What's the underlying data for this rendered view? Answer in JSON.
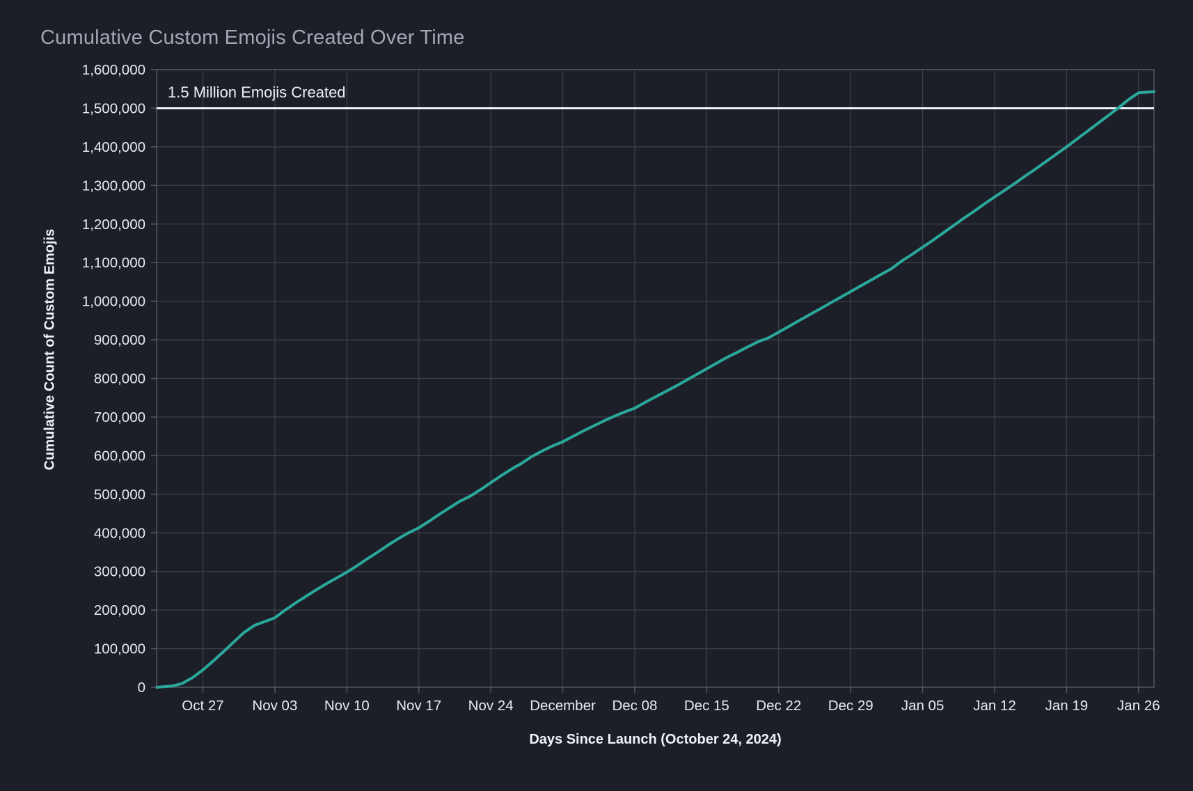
{
  "chart_data": {
    "type": "line",
    "title": "Cumulative Custom Emojis Created Over Time",
    "xlabel": "Days Since Launch (October 24, 2024)",
    "ylabel": "Cumulative Count of Custom Emojis",
    "xlim": [
      -1.5,
      95.5
    ],
    "ylim": [
      0,
      1600000
    ],
    "grid": true,
    "legend": false,
    "colors": {
      "background": "#1d1f28",
      "line": "#2aa99b",
      "grid": "#3c3f4a",
      "spine": "#50545f",
      "tick_label": "#e8eaef",
      "title": "#a3a7b4",
      "axis_label": "#f0f2f6",
      "reference_line": "#eef0f4"
    },
    "reference_line": {
      "value": 1500000,
      "label": "1.5 Million Emojis Created"
    },
    "yticks": [
      {
        "value": 0,
        "label": "0"
      },
      {
        "value": 100000,
        "label": "100,000"
      },
      {
        "value": 200000,
        "label": "200,000"
      },
      {
        "value": 300000,
        "label": "300,000"
      },
      {
        "value": 400000,
        "label": "400,000"
      },
      {
        "value": 500000,
        "label": "500,000"
      },
      {
        "value": 600000,
        "label": "600,000"
      },
      {
        "value": 700000,
        "label": "700,000"
      },
      {
        "value": 800000,
        "label": "800,000"
      },
      {
        "value": 900000,
        "label": "900,000"
      },
      {
        "value": 1000000,
        "label": "1,000,000"
      },
      {
        "value": 1100000,
        "label": "1,100,000"
      },
      {
        "value": 1200000,
        "label": "1,200,000"
      },
      {
        "value": 1300000,
        "label": "1,300,000"
      },
      {
        "value": 1400000,
        "label": "1,400,000"
      },
      {
        "value": 1500000,
        "label": "1,500,000"
      },
      {
        "value": 1600000,
        "label": "1,600,000"
      }
    ],
    "xticks": [
      {
        "day": 3,
        "label": "Oct 27"
      },
      {
        "day": 10,
        "label": "Nov 03"
      },
      {
        "day": 17,
        "label": "Nov 10"
      },
      {
        "day": 24,
        "label": "Nov 17"
      },
      {
        "day": 31,
        "label": "Nov 24"
      },
      {
        "day": 38,
        "label": "December"
      },
      {
        "day": 45,
        "label": "Dec 08"
      },
      {
        "day": 52,
        "label": "Dec 15"
      },
      {
        "day": 59,
        "label": "Dec 22"
      },
      {
        "day": 66,
        "label": "Dec 29"
      },
      {
        "day": 73,
        "label": "Jan 05"
      },
      {
        "day": 80,
        "label": "Jan 12"
      },
      {
        "day": 87,
        "label": "Jan 19"
      },
      {
        "day": 94,
        "label": "Jan 26"
      }
    ],
    "series": [
      {
        "name": "Cumulative Custom Emojis",
        "points": [
          [
            -1.5,
            0
          ],
          [
            0,
            3000
          ],
          [
            1,
            10000
          ],
          [
            2,
            25000
          ],
          [
            3,
            45000
          ],
          [
            4,
            68000
          ],
          [
            5,
            92000
          ],
          [
            6,
            117000
          ],
          [
            7,
            142000
          ],
          [
            8,
            160000
          ],
          [
            9,
            170000
          ],
          [
            10,
            180000
          ],
          [
            11,
            200000
          ],
          [
            12,
            218000
          ],
          [
            13,
            235000
          ],
          [
            14,
            252000
          ],
          [
            15,
            268000
          ],
          [
            16,
            283000
          ],
          [
            17,
            298000
          ],
          [
            18,
            315000
          ],
          [
            19,
            333000
          ],
          [
            20,
            350000
          ],
          [
            21,
            368000
          ],
          [
            22,
            385000
          ],
          [
            23,
            400000
          ],
          [
            24,
            413000
          ],
          [
            25,
            430000
          ],
          [
            26,
            448000
          ],
          [
            27,
            465000
          ],
          [
            28,
            482000
          ],
          [
            29,
            495000
          ],
          [
            30,
            512000
          ],
          [
            31,
            530000
          ],
          [
            32,
            548000
          ],
          [
            33,
            565000
          ],
          [
            34,
            580000
          ],
          [
            35,
            598000
          ],
          [
            36,
            612000
          ],
          [
            37,
            625000
          ],
          [
            38,
            636000
          ],
          [
            39,
            650000
          ],
          [
            40,
            664000
          ],
          [
            41,
            677000
          ],
          [
            42,
            690000
          ],
          [
            43,
            702000
          ],
          [
            44,
            713000
          ],
          [
            45,
            723000
          ],
          [
            46,
            738000
          ],
          [
            47,
            752000
          ],
          [
            48,
            766000
          ],
          [
            49,
            780000
          ],
          [
            50,
            795000
          ],
          [
            51,
            810000
          ],
          [
            52,
            825000
          ],
          [
            53,
            840000
          ],
          [
            54,
            855000
          ],
          [
            55,
            868000
          ],
          [
            56,
            882000
          ],
          [
            57,
            895000
          ],
          [
            58,
            905000
          ],
          [
            59,
            920000
          ],
          [
            60,
            935000
          ],
          [
            61,
            950000
          ],
          [
            62,
            965000
          ],
          [
            63,
            980000
          ],
          [
            64,
            995000
          ],
          [
            65,
            1010000
          ],
          [
            66,
            1025000
          ],
          [
            67,
            1040000
          ],
          [
            68,
            1055000
          ],
          [
            69,
            1070000
          ],
          [
            70,
            1085000
          ],
          [
            71,
            1105000
          ],
          [
            72,
            1122000
          ],
          [
            73,
            1140000
          ],
          [
            74,
            1158000
          ],
          [
            75,
            1177000
          ],
          [
            76,
            1196000
          ],
          [
            77,
            1215000
          ],
          [
            78,
            1233000
          ],
          [
            79,
            1252000
          ],
          [
            80,
            1270000
          ],
          [
            81,
            1288000
          ],
          [
            82,
            1306000
          ],
          [
            83,
            1325000
          ],
          [
            84,
            1343000
          ],
          [
            85,
            1362000
          ],
          [
            86,
            1381000
          ],
          [
            87,
            1400000
          ],
          [
            88,
            1420000
          ],
          [
            89,
            1440000
          ],
          [
            90,
            1460000
          ],
          [
            91,
            1480000
          ],
          [
            92,
            1500000
          ],
          [
            93,
            1522000
          ],
          [
            94,
            1540000
          ],
          [
            95.5,
            1543000
          ]
        ]
      }
    ]
  }
}
